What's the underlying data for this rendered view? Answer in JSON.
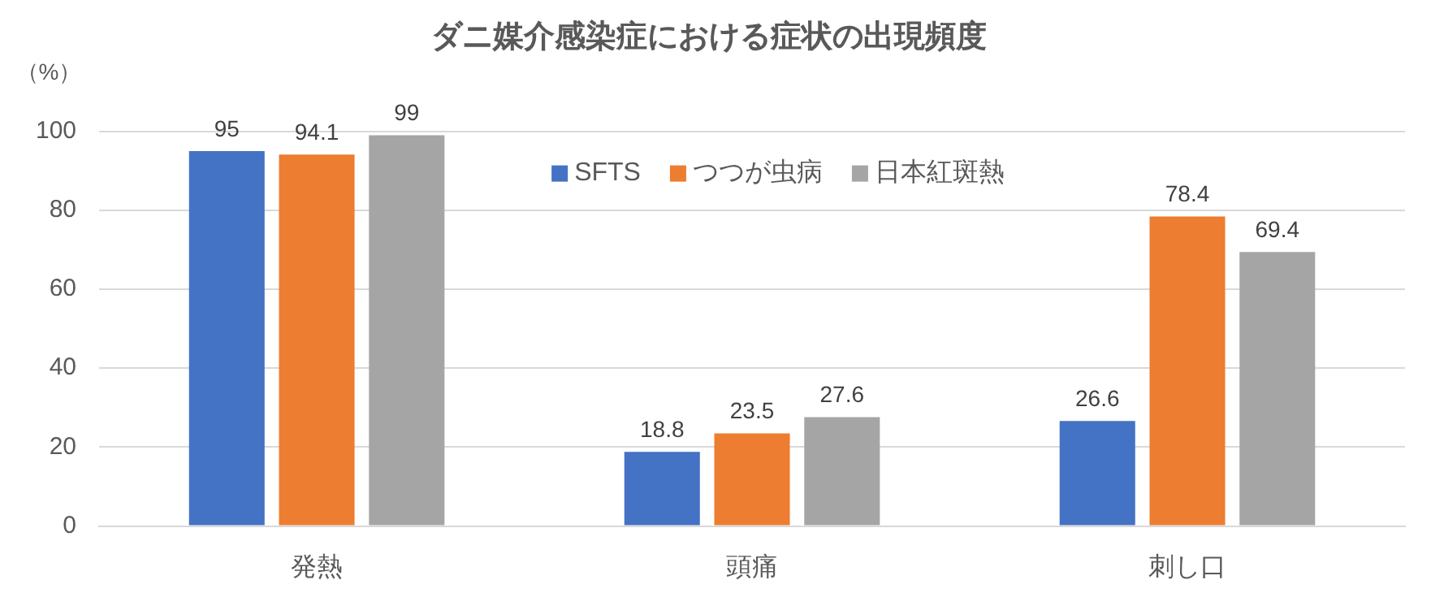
{
  "chart_data": {
    "type": "bar",
    "title": "ダニ媒介感染症における症状の出現頻度",
    "ylabel": "（%）",
    "categories": [
      "発熱",
      "頭痛",
      "刺し口"
    ],
    "series": [
      {
        "name": "SFTS",
        "color": "#4472c4",
        "values": [
          95,
          18.8,
          26.6
        ]
      },
      {
        "name": "つつが虫病",
        "color": "#ed7d31",
        "values": [
          94.1,
          23.5,
          78.4
        ]
      },
      {
        "name": "日本紅斑熱",
        "color": "#a5a5a5",
        "values": [
          99,
          27.6,
          69.4
        ]
      }
    ],
    "ylim": [
      0,
      100
    ],
    "yticks": [
      0,
      20,
      40,
      60,
      80,
      100
    ],
    "grid": "y",
    "legend": "top",
    "data_labels": true
  }
}
